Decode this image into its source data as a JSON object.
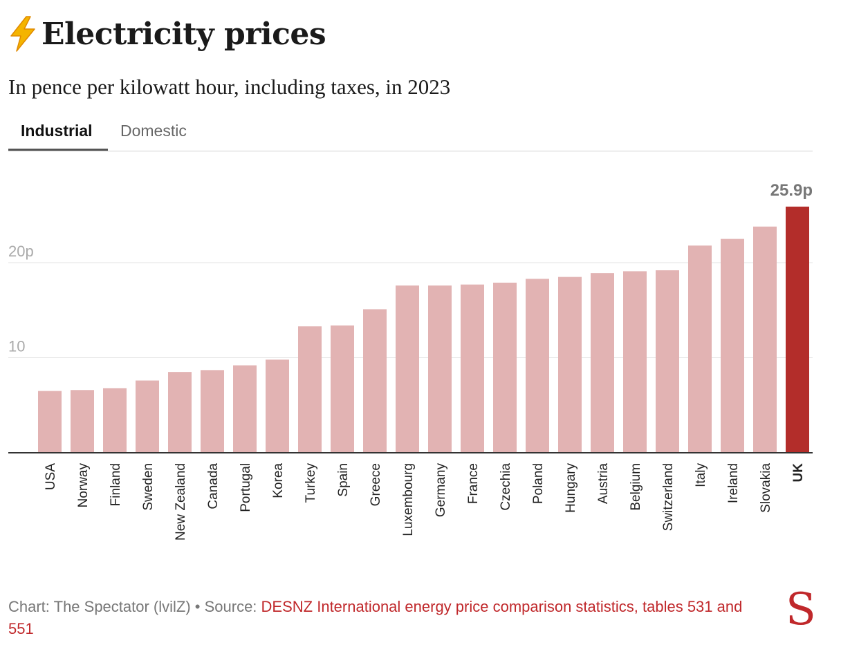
{
  "title": "Electricity prices",
  "subtitle": "In pence per kilowatt hour, including taxes, in 2023",
  "tabs": {
    "industrial": "Industrial",
    "domestic": "Domestic"
  },
  "chart_data": {
    "type": "bar",
    "categories": [
      "USA",
      "Norway",
      "Finland",
      "Sweden",
      "New Zealand",
      "Canada",
      "Portugal",
      "Korea",
      "Turkey",
      "Spain",
      "Greece",
      "Luxembourg",
      "Germany",
      "France",
      "Czechia",
      "Poland",
      "Hungary",
      "Austria",
      "Belgium",
      "Switzerland",
      "Italy",
      "Ireland",
      "Slovakia",
      "UK"
    ],
    "values": [
      6.5,
      6.6,
      6.8,
      7.6,
      8.5,
      8.7,
      9.2,
      9.8,
      13.3,
      13.4,
      15.1,
      17.6,
      17.6,
      17.7,
      17.9,
      18.3,
      18.5,
      18.9,
      19.1,
      19.2,
      21.8,
      22.5,
      23.8,
      25.9
    ],
    "highlight": "UK",
    "highlight_label": "25.9p",
    "y_ticks": [
      {
        "value": 10,
        "label": "10"
      },
      {
        "value": 20,
        "label": "20p"
      }
    ],
    "ylim": [
      0,
      26
    ],
    "colors": {
      "bar": "#e2b3b3",
      "highlight": "#b32d2a",
      "grid": "#e3e3e3",
      "axis": "#333333",
      "tick_label": "#aaaaaa",
      "value_label": "#777777"
    },
    "grid": true
  },
  "footer": {
    "credit": "Chart: The Spectator (lvilZ) • Source: ",
    "source": "DESNZ International energy price comparison statistics, tables 531 and 551"
  },
  "logo": "S"
}
